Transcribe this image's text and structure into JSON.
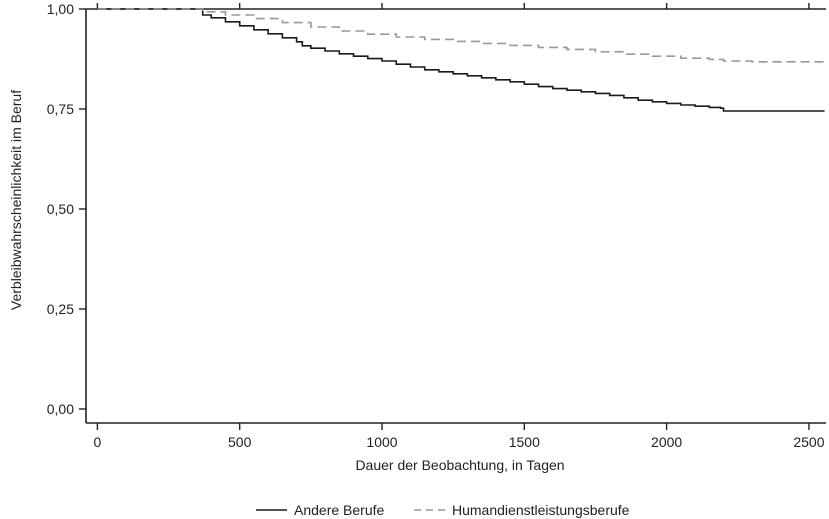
{
  "chart_data": {
    "type": "line",
    "title": "",
    "xlabel": "Dauer der Beobachtung, in Tagen",
    "ylabel": "Verbleibwahrscheinlichkeit im Beruf",
    "xlim": [
      -40,
      2560
    ],
    "ylim": [
      -0.035,
      1.0
    ],
    "x_ticks": [
      0,
      500,
      1000,
      1500,
      2000,
      2500
    ],
    "x_tick_labels": [
      "0",
      "500",
      "1000",
      "1500",
      "2000",
      "2500"
    ],
    "y_ticks": [
      0.0,
      0.25,
      0.5,
      0.75,
      1.0
    ],
    "y_tick_labels": [
      "0,00",
      "0,25",
      "0,50",
      "0,75",
      "1,00"
    ],
    "grid": false,
    "legend_position": "bottom",
    "series": [
      {
        "name": "Andere Berufe",
        "style": "solid",
        "color": "#1a1a1a",
        "x": [
          0,
          360,
          370,
          400,
          450,
          500,
          550,
          600,
          650,
          700,
          720,
          750,
          800,
          850,
          900,
          950,
          1000,
          1050,
          1100,
          1150,
          1200,
          1250,
          1300,
          1350,
          1400,
          1450,
          1500,
          1550,
          1600,
          1650,
          1700,
          1750,
          1800,
          1850,
          1900,
          1950,
          2000,
          2050,
          2100,
          2150,
          2190,
          2200,
          2300,
          2400,
          2500,
          2555
        ],
        "y": [
          1.0,
          1.0,
          0.985,
          0.978,
          0.968,
          0.958,
          0.948,
          0.938,
          0.928,
          0.918,
          0.908,
          0.902,
          0.895,
          0.888,
          0.882,
          0.876,
          0.87,
          0.862,
          0.855,
          0.848,
          0.843,
          0.838,
          0.833,
          0.828,
          0.823,
          0.818,
          0.812,
          0.806,
          0.801,
          0.797,
          0.793,
          0.789,
          0.784,
          0.778,
          0.772,
          0.768,
          0.764,
          0.76,
          0.757,
          0.754,
          0.752,
          0.745,
          0.745,
          0.745,
          0.745,
          0.745
        ]
      },
      {
        "name": "Humandienstleistungsberufe",
        "style": "dashed",
        "color": "#999999",
        "x": [
          0,
          360,
          370,
          450,
          550,
          650,
          750,
          850,
          950,
          1050,
          1150,
          1250,
          1350,
          1450,
          1550,
          1650,
          1750,
          1850,
          1950,
          2050,
          2150,
          2200,
          2300,
          2400,
          2555
        ],
        "y": [
          1.0,
          1.0,
          0.993,
          0.985,
          0.976,
          0.966,
          0.955,
          0.945,
          0.937,
          0.93,
          0.924,
          0.919,
          0.914,
          0.909,
          0.904,
          0.899,
          0.893,
          0.887,
          0.882,
          0.877,
          0.874,
          0.87,
          0.868,
          0.868,
          0.868
        ]
      }
    ]
  }
}
